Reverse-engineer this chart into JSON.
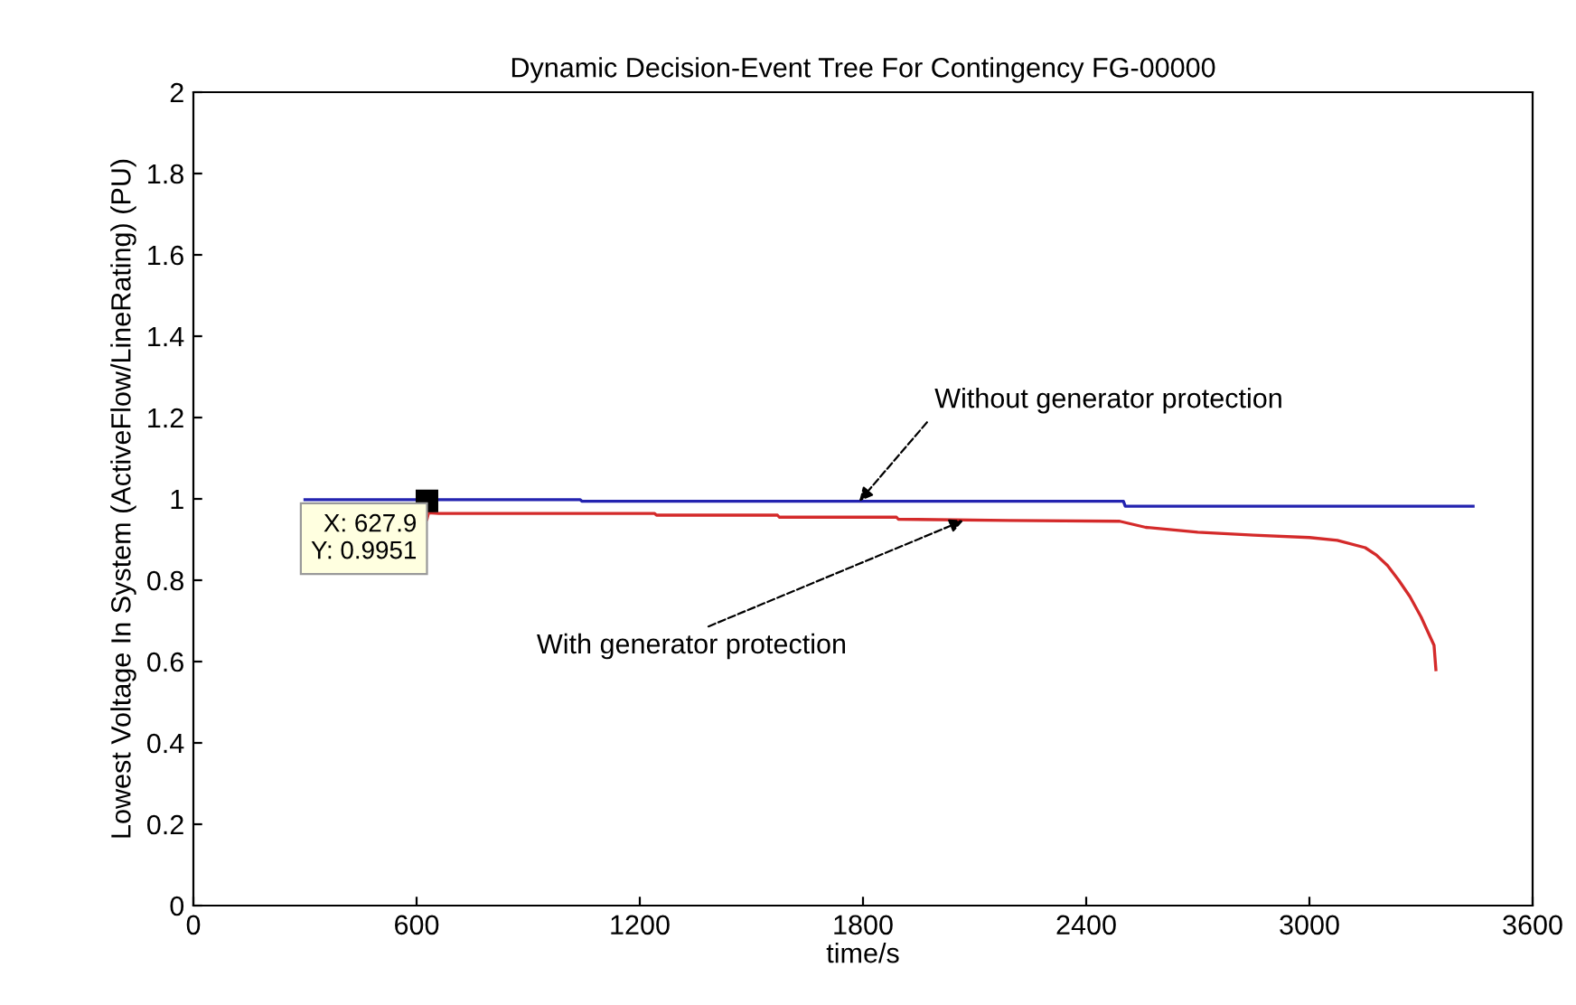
{
  "chart_data": {
    "type": "line",
    "title": "Dynamic Decision-Event Tree For Contingency FG-00000",
    "xlabel": "time/s",
    "ylabel": "Lowest Voltage In System (ActiveFlow/LineRating) (PU)",
    "xlim": [
      0,
      3600
    ],
    "xticks": [
      0,
      600,
      1200,
      1800,
      2400,
      3000,
      3600
    ],
    "ylim": [
      0,
      2
    ],
    "yticks": [
      0,
      0.2,
      0.4,
      0.6,
      0.8,
      1,
      1.2,
      1.4,
      1.6,
      1.8,
      2
    ],
    "grid": false,
    "legend": false,
    "marker": "none",
    "line_style": "solid",
    "series": [
      {
        "color": "#2323b0",
        "x": [
          300,
          1040,
          1045,
          2500,
          2505,
          3440
        ],
        "values": [
          0.998,
          0.998,
          0.994,
          0.994,
          0.982,
          0.982
        ]
      },
      {
        "color": "#d42a2a",
        "x": [
          628,
          632,
          660,
          1240,
          1245,
          1570,
          1575,
          1890,
          1895,
          2190,
          2490,
          2560,
          2700,
          2850,
          3000,
          3075,
          3150,
          3180,
          3210,
          3240,
          3270,
          3300,
          3320,
          3335,
          3340
        ],
        "values": [
          0.95,
          0.966,
          0.964,
          0.964,
          0.96,
          0.96,
          0.955,
          0.955,
          0.95,
          0.947,
          0.945,
          0.93,
          0.918,
          0.911,
          0.905,
          0.898,
          0.88,
          0.862,
          0.836,
          0.8,
          0.76,
          0.71,
          0.67,
          0.64,
          0.58
        ]
      }
    ],
    "annotations": [
      {
        "text": "X: 627.9\nY: 0.9951",
        "x": 627.9,
        "y": 0.9951
      },
      {
        "text": "Without generator protection",
        "x": 1790,
        "y": 0.994
      },
      {
        "text": "With generator protection",
        "x": 2070,
        "y": 0.947
      }
    ]
  }
}
